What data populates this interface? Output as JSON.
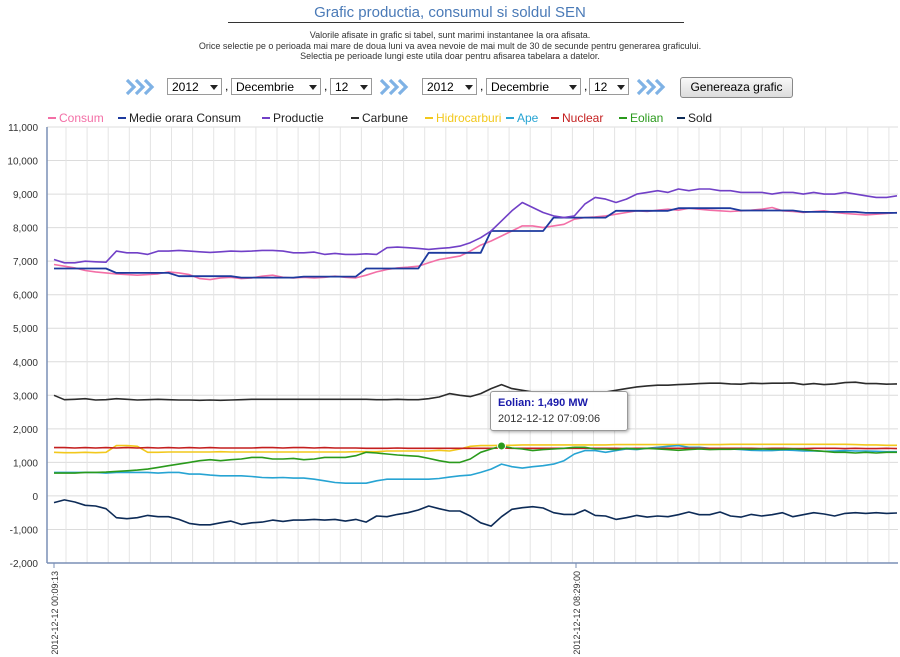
{
  "page": {
    "title": "Grafic productia, consumul si soldul SEN",
    "notes": [
      "Valorile afisate in grafic si tabel, sunt marimi instantanee la ora afisata.",
      "Orice selectie pe o perioada mai mare de doua luni va avea nevoie de mai mult de 30 de secunde pentru generarea graficului.",
      "Selectia pe perioade lungi este utila doar pentru afisarea tabelara a datelor."
    ]
  },
  "controls": {
    "start": {
      "year": "2012",
      "month": "Decembrie",
      "day": "12"
    },
    "end": {
      "year": "2012",
      "month": "Decembrie",
      "day": "12"
    },
    "separator": ",",
    "generate_label": "Genereaza grafic"
  },
  "tooltip": {
    "series": "Eolian",
    "value_text": "1,490 MW",
    "time_text": "2012-12-12 07:09:06"
  },
  "chart_data": {
    "type": "line",
    "ylim": [
      -2000,
      11000
    ],
    "ytick_labels": [
      "11,000",
      "10,000",
      "9,000",
      "8,000",
      "7,000",
      "6,000",
      "5,000",
      "4,000",
      "3,000",
      "2,000",
      "1,000",
      "0",
      "-1,000",
      "-2,000"
    ],
    "xtick_labels": [
      "2012-12-12 00:09:13",
      "2012-12-12 08:29:00"
    ],
    "grid": true,
    "legend_position": "top",
    "series": [
      {
        "name": "Consum",
        "color": "#f36fa6",
        "values": [
          6900,
          6850,
          6800,
          6720,
          6680,
          6650,
          6620,
          6600,
          6580,
          6600,
          6620,
          6680,
          6650,
          6600,
          6480,
          6450,
          6500,
          6520,
          6480,
          6500,
          6550,
          6580,
          6520,
          6500,
          6520,
          6500,
          6520,
          6550,
          6520,
          6500,
          6580,
          6680,
          6750,
          6800,
          6820,
          6850,
          6950,
          7050,
          7100,
          7150,
          7300,
          7480,
          7600,
          7750,
          7900,
          8050,
          8050,
          8000,
          8050,
          8100,
          8250,
          8300,
          8320,
          8350,
          8400,
          8450,
          8500,
          8480,
          8520,
          8550,
          8520,
          8580,
          8550,
          8520,
          8500,
          8480,
          8500,
          8520,
          8550,
          8600,
          8500,
          8480,
          8450,
          8480,
          8500,
          8450,
          8420,
          8400,
          8380,
          8400,
          8420,
          8450
        ]
      },
      {
        "name": "Medie orara Consum",
        "color": "#1d3a9e",
        "values": [
          6780,
          6780,
          6780,
          6780,
          6780,
          6780,
          6650,
          6650,
          6650,
          6650,
          6650,
          6650,
          6550,
          6550,
          6550,
          6550,
          6550,
          6550,
          6510,
          6510,
          6510,
          6510,
          6510,
          6510,
          6540,
          6540,
          6540,
          6540,
          6540,
          6540,
          6780,
          6780,
          6780,
          6780,
          6780,
          6780,
          7250,
          7250,
          7250,
          7250,
          7250,
          7250,
          7900,
          7900,
          7900,
          7900,
          7900,
          7900,
          8300,
          8300,
          8300,
          8300,
          8300,
          8300,
          8500,
          8500,
          8500,
          8500,
          8500,
          8500,
          8580,
          8580,
          8580,
          8580,
          8580,
          8580,
          8510,
          8510,
          8510,
          8510,
          8510,
          8510,
          8470,
          8470,
          8470,
          8470,
          8470,
          8470,
          8440,
          8440,
          8440,
          8440
        ]
      },
      {
        "name": "Productie",
        "color": "#7140c7",
        "values": [
          7050,
          6950,
          6950,
          7000,
          6980,
          6970,
          7300,
          7250,
          7250,
          7200,
          7300,
          7300,
          7320,
          7300,
          7280,
          7260,
          7280,
          7300,
          7290,
          7300,
          7320,
          7320,
          7300,
          7250,
          7250,
          7270,
          7200,
          7230,
          7200,
          7200,
          7220,
          7200,
          7400,
          7420,
          7400,
          7380,
          7350,
          7380,
          7400,
          7450,
          7550,
          7700,
          7900,
          8200,
          8500,
          8750,
          8600,
          8450,
          8350,
          8300,
          8350,
          8700,
          8900,
          8850,
          8750,
          8850,
          9000,
          9050,
          9100,
          9050,
          9150,
          9100,
          9150,
          9150,
          9100,
          9100,
          9050,
          9050,
          9050,
          9000,
          9050,
          9050,
          9000,
          9050,
          9000,
          9000,
          9050,
          9000,
          8950,
          8900,
          8900,
          8950
        ]
      },
      {
        "name": "Carbune",
        "color": "#2c2c2c",
        "values": [
          3000,
          2870,
          2880,
          2900,
          2860,
          2870,
          2900,
          2880,
          2860,
          2870,
          2880,
          2870,
          2860,
          2860,
          2850,
          2860,
          2850,
          2860,
          2870,
          2880,
          2880,
          2880,
          2880,
          2880,
          2880,
          2880,
          2880,
          2880,
          2880,
          2880,
          2880,
          2870,
          2870,
          2880,
          2870,
          2870,
          2900,
          2950,
          3050,
          3000,
          2960,
          3050,
          3200,
          3320,
          3200,
          3150,
          3100,
          3080,
          3050,
          3050,
          3100,
          3100,
          3100,
          3100,
          3150,
          3200,
          3250,
          3280,
          3300,
          3300,
          3320,
          3330,
          3350,
          3360,
          3360,
          3340,
          3330,
          3360,
          3350,
          3360,
          3360,
          3370,
          3320,
          3350,
          3320,
          3340,
          3380,
          3390,
          3350,
          3350,
          3330,
          3340
        ]
      },
      {
        "name": "Hidrocarburi",
        "color": "#f2c81c",
        "values": [
          1300,
          1290,
          1290,
          1300,
          1290,
          1300,
          1500,
          1500,
          1480,
          1300,
          1300,
          1310,
          1310,
          1310,
          1310,
          1310,
          1320,
          1310,
          1310,
          1310,
          1310,
          1310,
          1310,
          1310,
          1310,
          1310,
          1310,
          1310,
          1310,
          1320,
          1320,
          1320,
          1340,
          1340,
          1340,
          1340,
          1340,
          1360,
          1340,
          1400,
          1480,
          1500,
          1500,
          1510,
          1510,
          1520,
          1520,
          1520,
          1520,
          1520,
          1520,
          1520,
          1520,
          1520,
          1530,
          1530,
          1530,
          1530,
          1530,
          1530,
          1530,
          1530,
          1530,
          1530,
          1530,
          1540,
          1540,
          1540,
          1540,
          1540,
          1540,
          1540,
          1540,
          1540,
          1540,
          1540,
          1540,
          1530,
          1520,
          1520,
          1510,
          1510
        ]
      },
      {
        "name": "Ape",
        "color": "#27a4d3",
        "values": [
          700,
          700,
          700,
          700,
          700,
          680,
          700,
          700,
          700,
          700,
          680,
          700,
          700,
          650,
          650,
          620,
          600,
          600,
          600,
          580,
          550,
          540,
          550,
          530,
          530,
          500,
          450,
          400,
          380,
          380,
          380,
          450,
          500,
          500,
          500,
          500,
          500,
          520,
          560,
          600,
          620,
          700,
          800,
          950,
          870,
          830,
          870,
          900,
          950,
          1050,
          1250,
          1350,
          1350,
          1300,
          1350,
          1400,
          1380,
          1420,
          1450,
          1480,
          1500,
          1450,
          1450,
          1420,
          1400,
          1400,
          1380,
          1360,
          1350,
          1350,
          1370,
          1360,
          1340,
          1340,
          1330,
          1340,
          1350,
          1340,
          1340,
          1330,
          1320,
          1320
        ]
      },
      {
        "name": "Nuclear",
        "color": "#c41f1f",
        "values": [
          1440,
          1440,
          1430,
          1440,
          1430,
          1440,
          1430,
          1440,
          1430,
          1440,
          1430,
          1440,
          1430,
          1440,
          1430,
          1440,
          1430,
          1430,
          1430,
          1430,
          1440,
          1440,
          1430,
          1440,
          1440,
          1430,
          1440,
          1430,
          1430,
          1430,
          1420,
          1420,
          1420,
          1430,
          1420,
          1420,
          1420,
          1420,
          1420,
          1420,
          1420,
          1420,
          1420,
          1430,
          1420,
          1420,
          1420,
          1420,
          1420,
          1420,
          1420,
          1420,
          1420,
          1420,
          1420,
          1410,
          1420,
          1420,
          1410,
          1420,
          1420,
          1420,
          1420,
          1420,
          1420,
          1420,
          1420,
          1420,
          1410,
          1420,
          1420,
          1410,
          1410,
          1420,
          1420,
          1420,
          1410,
          1420,
          1410,
          1410,
          1420,
          1410
        ]
      },
      {
        "name": "Eolian",
        "color": "#2a9a1c",
        "values": [
          680,
          680,
          680,
          700,
          700,
          710,
          730,
          750,
          770,
          800,
          850,
          900,
          950,
          1000,
          1050,
          1080,
          1050,
          1080,
          1100,
          1150,
          1150,
          1100,
          1100,
          1120,
          1080,
          1100,
          1150,
          1150,
          1150,
          1200,
          1300,
          1280,
          1250,
          1220,
          1200,
          1180,
          1120,
          1050,
          1000,
          1000,
          1100,
          1300,
          1400,
          1490,
          1430,
          1400,
          1350,
          1380,
          1400,
          1420,
          1450,
          1450,
          1400,
          1400,
          1380,
          1420,
          1400,
          1420,
          1400,
          1380,
          1360,
          1380,
          1400,
          1380,
          1390,
          1390,
          1400,
          1390,
          1400,
          1390,
          1390,
          1400,
          1380,
          1350,
          1330,
          1300,
          1300,
          1280,
          1300,
          1280,
          1300,
          1300
        ]
      },
      {
        "name": "Sold",
        "color": "#0d2b57",
        "values": [
          -200,
          -120,
          -180,
          -280,
          -300,
          -380,
          -650,
          -680,
          -650,
          -580,
          -620,
          -620,
          -700,
          -820,
          -860,
          -860,
          -800,
          -750,
          -850,
          -800,
          -780,
          -720,
          -760,
          -720,
          -720,
          -700,
          -720,
          -700,
          -750,
          -700,
          -780,
          -600,
          -620,
          -550,
          -500,
          -420,
          -300,
          -380,
          -450,
          -450,
          -600,
          -800,
          -900,
          -620,
          -400,
          -350,
          -320,
          -360,
          -500,
          -550,
          -550,
          -420,
          -580,
          -600,
          -700,
          -650,
          -580,
          -630,
          -600,
          -620,
          -560,
          -480,
          -560,
          -560,
          -480,
          -600,
          -630,
          -550,
          -600,
          -560,
          -500,
          -620,
          -560,
          -500,
          -540,
          -600,
          -520,
          -500,
          -520,
          -500,
          -520,
          -510
        ]
      }
    ]
  }
}
